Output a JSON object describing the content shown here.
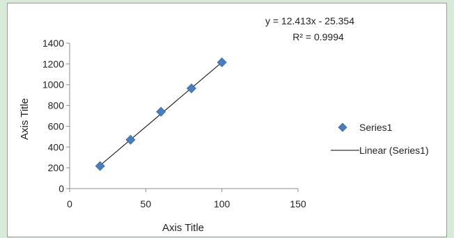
{
  "chart_data": {
    "type": "scatter",
    "title": "",
    "xlabel": "Axis Title",
    "ylabel": "Axis Title",
    "xlim": [
      0,
      150
    ],
    "ylim": [
      0,
      1400
    ],
    "x_ticks": [
      0,
      50,
      100,
      150
    ],
    "y_ticks": [
      0,
      200,
      400,
      600,
      800,
      1000,
      1200,
      1400
    ],
    "grid": false,
    "legend_position": "right",
    "series": [
      {
        "name": "Series1",
        "marker": "diamond",
        "color": "#4a7ebb",
        "x": [
          20,
          40,
          60,
          80,
          100
        ],
        "y": [
          217,
          470,
          740,
          965,
          1215
        ]
      }
    ],
    "trendline": {
      "name": "Linear (Series1)",
      "type": "linear",
      "slope": 12.413,
      "intercept": -25.354,
      "x_range": [
        20,
        100
      ],
      "color": "#000000"
    },
    "annotations": {
      "equation": "y = 12.413x - 25.354",
      "r_squared": "R² = 0.9994"
    },
    "legend": {
      "entries": [
        "Series1",
        "Linear (Series1)"
      ]
    }
  }
}
